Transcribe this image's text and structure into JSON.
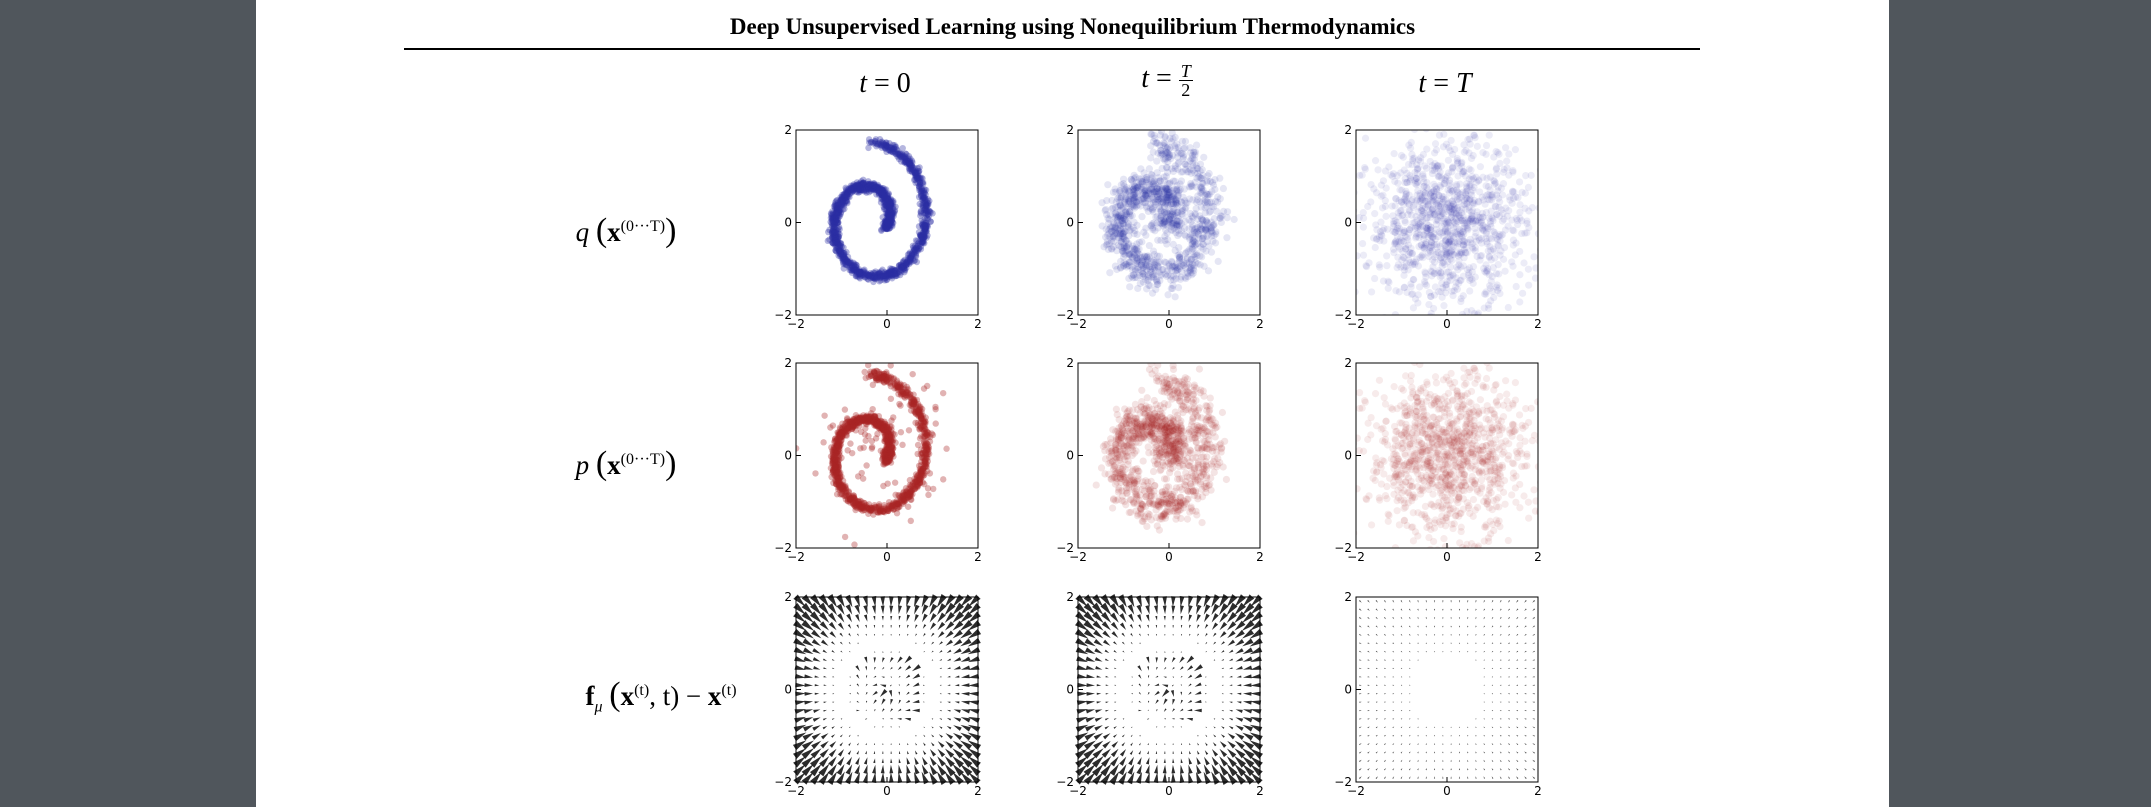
{
  "header": {
    "running_title": "Deep Unsupervised Learning using Nonequilibrium Thermodynamics"
  },
  "figure": {
    "columns": [
      {
        "label_var": "t",
        "label_eq": "=",
        "label_val": "0"
      },
      {
        "label_var": "t",
        "label_eq": "=",
        "label_num": "T",
        "label_den": "2"
      },
      {
        "label_var": "t",
        "label_eq": "=",
        "label_val": "T"
      }
    ],
    "rows": [
      {
        "label_fn": "q",
        "label_arg": "x",
        "label_sup": "(0···T)"
      },
      {
        "label_fn": "p",
        "label_arg": "x",
        "label_sup": "(0···T)"
      },
      {
        "label_fn": "f",
        "label_sub": "μ",
        "label_arg": "x",
        "label_sup": "(t)",
        "label_rest": ", t) − ",
        "label_arg2": "x",
        "label_sup2": "(t)"
      }
    ],
    "axis": {
      "xlim": [
        -2,
        2
      ],
      "ylim": [
        -2,
        2
      ],
      "x_ticks": [
        "−2",
        "0",
        "2"
      ],
      "y_ticks": [
        "2",
        "0",
        "−2"
      ]
    },
    "colors": {
      "forward": "#2b2fa3",
      "reverse": "#a82424",
      "drift": "#1a1a1a"
    },
    "series_noise": [
      0.05,
      0.45,
      1.0
    ]
  }
}
